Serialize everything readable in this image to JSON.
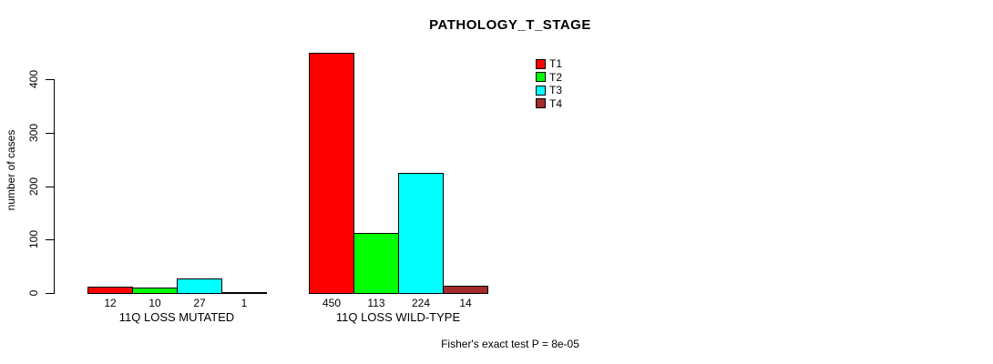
{
  "title": "PATHOLOGY_T_STAGE",
  "ylabel": "number of cases",
  "footer": "Fisher's exact test P = 8e-05",
  "chart_data": {
    "type": "bar",
    "title": "PATHOLOGY_T_STAGE",
    "xlabel": "",
    "ylabel": "number of cases",
    "ylim": [
      0,
      450
    ],
    "yticks": [
      0,
      100,
      200,
      300,
      400
    ],
    "grid": false,
    "legend_position": "top-right-inside",
    "categories": [
      "11Q LOSS MUTATED",
      "11Q LOSS WILD-TYPE"
    ],
    "series": [
      {
        "name": "T1",
        "color": "#FF0000",
        "values": [
          12,
          450
        ]
      },
      {
        "name": "T2",
        "color": "#00FF00",
        "values": [
          10,
          113
        ]
      },
      {
        "name": "T3",
        "color": "#00FFFF",
        "values": [
          27,
          224
        ]
      },
      {
        "name": "T4",
        "color": "#A52A2A",
        "values": [
          1,
          14
        ]
      }
    ],
    "bar_value_labels": [
      [
        12,
        10,
        27,
        1
      ],
      [
        450,
        113,
        224,
        14
      ]
    ],
    "annotation": "Fisher's exact test P = 8e-05"
  }
}
